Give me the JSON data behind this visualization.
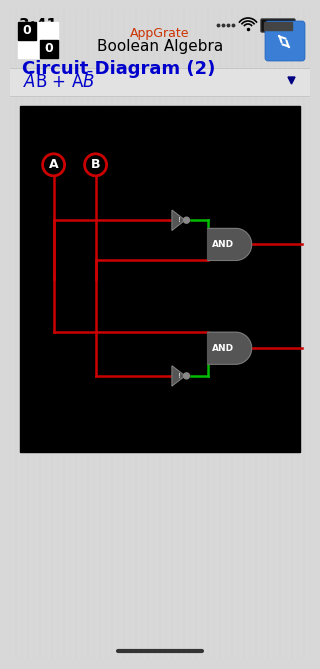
{
  "bg_color": "#d8d8d8",
  "time_text": "3:41",
  "app_name": "AppGrate",
  "app_subtitle": "Boolean Algebra",
  "section_title": "Circuit Diagram (2)",
  "wire_red": "#cc0000",
  "wire_green": "#00bb00",
  "gate_fill": "#555555",
  "gate_edge": "#888888",
  "circuit_bg": "#000000",
  "node_edge": "#cc0000",
  "node_text": "#ffffff",
  "logo_bg": "#ffffff",
  "logo_black": "#000000",
  "blue_btn": "#3a7fd5",
  "section_color": "#0000cc",
  "formula_color": "#0000cc",
  "dropdown_color": "#000080",
  "footer_bar_color": "#333333",
  "status_dot_color": "#333333"
}
